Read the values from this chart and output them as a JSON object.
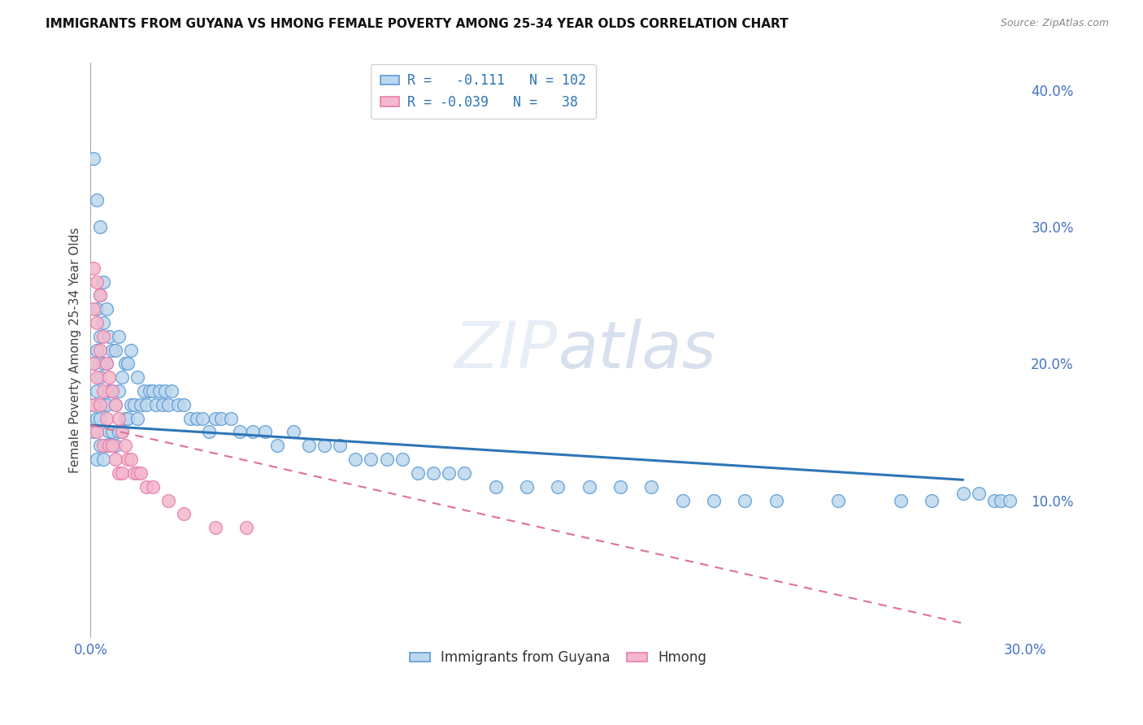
{
  "title": "IMMIGRANTS FROM GUYANA VS HMONG FEMALE POVERTY AMONG 25-34 YEAR OLDS CORRELATION CHART",
  "source": "Source: ZipAtlas.com",
  "ylabel": "Female Poverty Among 25-34 Year Olds",
  "xlim": [
    0.0,
    0.3
  ],
  "ylim": [
    0.0,
    0.42
  ],
  "blue_color": "#5b9bd5",
  "blue_fill": "#bdd7ee",
  "pink_color": "#e87cac",
  "pink_fill": "#f4b8cc",
  "line_blue": "#2e75b6",
  "line_pink": "#e07090",
  "watermark_color": "#d0dff0",
  "tick_color": "#4472c4",
  "grid_color": "#c8d0dc",
  "guyana_x": [
    0.001,
    0.001,
    0.001,
    0.002,
    0.002,
    0.002,
    0.002,
    0.002,
    0.003,
    0.003,
    0.003,
    0.003,
    0.003,
    0.004,
    0.004,
    0.004,
    0.004,
    0.004,
    0.005,
    0.005,
    0.005,
    0.005,
    0.006,
    0.006,
    0.006,
    0.007,
    0.007,
    0.007,
    0.008,
    0.008,
    0.008,
    0.009,
    0.009,
    0.009,
    0.01,
    0.01,
    0.011,
    0.011,
    0.012,
    0.012,
    0.013,
    0.013,
    0.014,
    0.015,
    0.015,
    0.016,
    0.017,
    0.018,
    0.019,
    0.02,
    0.021,
    0.022,
    0.023,
    0.024,
    0.025,
    0.026,
    0.028,
    0.03,
    0.032,
    0.034,
    0.036,
    0.038,
    0.04,
    0.042,
    0.045,
    0.048,
    0.052,
    0.056,
    0.06,
    0.065,
    0.07,
    0.075,
    0.08,
    0.085,
    0.09,
    0.095,
    0.1,
    0.105,
    0.11,
    0.115,
    0.12,
    0.13,
    0.14,
    0.15,
    0.16,
    0.17,
    0.18,
    0.19,
    0.2,
    0.21,
    0.22,
    0.24,
    0.26,
    0.27,
    0.28,
    0.285,
    0.29,
    0.292,
    0.295,
    0.001,
    0.002,
    0.003
  ],
  "guyana_y": [
    0.15,
    0.17,
    0.2,
    0.13,
    0.16,
    0.18,
    0.21,
    0.24,
    0.14,
    0.16,
    0.19,
    0.22,
    0.25,
    0.13,
    0.17,
    0.2,
    0.23,
    0.26,
    0.14,
    0.17,
    0.2,
    0.24,
    0.15,
    0.18,
    0.22,
    0.15,
    0.18,
    0.21,
    0.14,
    0.17,
    0.21,
    0.15,
    0.18,
    0.22,
    0.15,
    0.19,
    0.16,
    0.2,
    0.16,
    0.2,
    0.17,
    0.21,
    0.17,
    0.16,
    0.19,
    0.17,
    0.18,
    0.17,
    0.18,
    0.18,
    0.17,
    0.18,
    0.17,
    0.18,
    0.17,
    0.18,
    0.17,
    0.17,
    0.16,
    0.16,
    0.16,
    0.15,
    0.16,
    0.16,
    0.16,
    0.15,
    0.15,
    0.15,
    0.14,
    0.15,
    0.14,
    0.14,
    0.14,
    0.13,
    0.13,
    0.13,
    0.13,
    0.12,
    0.12,
    0.12,
    0.12,
    0.11,
    0.11,
    0.11,
    0.11,
    0.11,
    0.11,
    0.1,
    0.1,
    0.1,
    0.1,
    0.1,
    0.1,
    0.1,
    0.105,
    0.105,
    0.1,
    0.1,
    0.1,
    0.35,
    0.32,
    0.3
  ],
  "hmong_x": [
    0.001,
    0.001,
    0.001,
    0.001,
    0.002,
    0.002,
    0.002,
    0.002,
    0.003,
    0.003,
    0.003,
    0.004,
    0.004,
    0.004,
    0.005,
    0.005,
    0.006,
    0.006,
    0.007,
    0.007,
    0.008,
    0.008,
    0.009,
    0.009,
    0.01,
    0.01,
    0.011,
    0.012,
    0.013,
    0.014,
    0.015,
    0.016,
    0.018,
    0.02,
    0.025,
    0.03,
    0.04,
    0.05
  ],
  "hmong_y": [
    0.27,
    0.24,
    0.2,
    0.17,
    0.26,
    0.23,
    0.19,
    0.15,
    0.25,
    0.21,
    0.17,
    0.22,
    0.18,
    0.14,
    0.2,
    0.16,
    0.19,
    0.14,
    0.18,
    0.14,
    0.17,
    0.13,
    0.16,
    0.12,
    0.15,
    0.12,
    0.14,
    0.13,
    0.13,
    0.12,
    0.12,
    0.12,
    0.11,
    0.11,
    0.1,
    0.09,
    0.08,
    0.08
  ],
  "blue_line_x0": 0.0,
  "blue_line_y0": 0.155,
  "blue_line_x1": 0.28,
  "blue_line_y1": 0.115,
  "pink_line_x0": 0.0,
  "pink_line_y0": 0.155,
  "pink_line_x1": 0.28,
  "pink_line_y1": 0.01
}
